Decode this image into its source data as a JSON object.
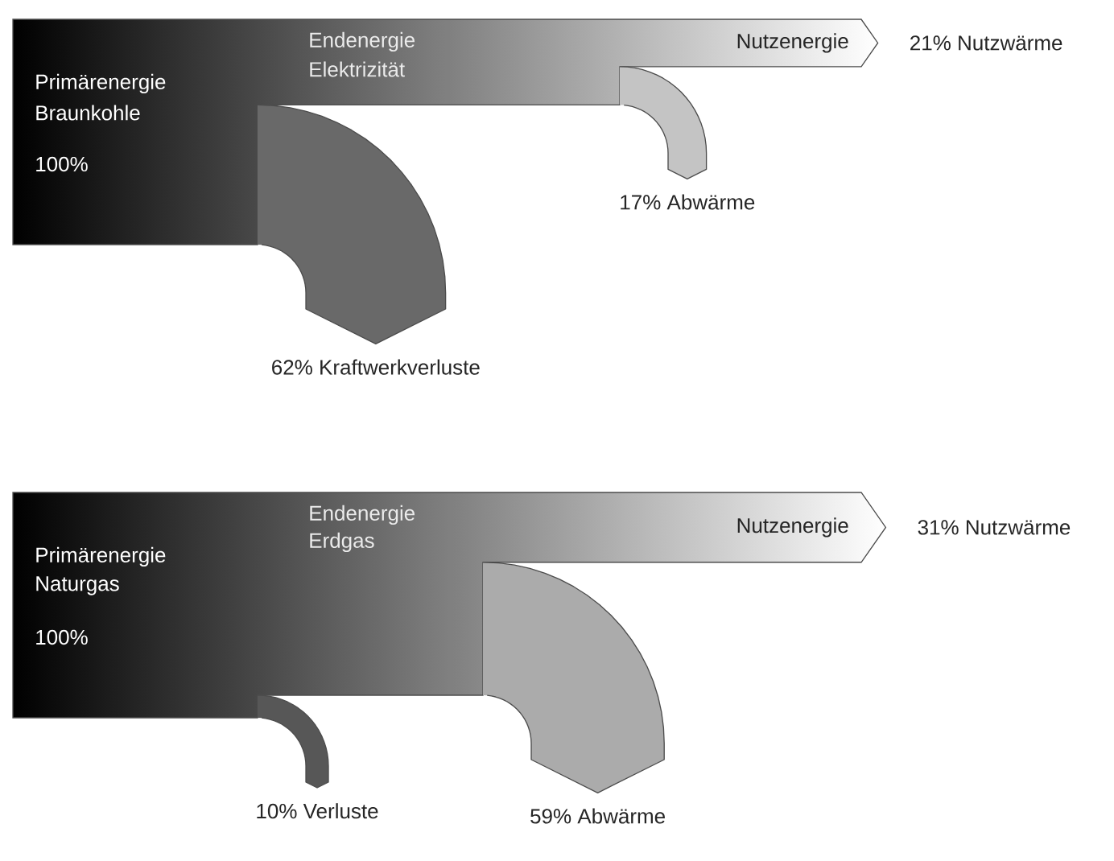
{
  "chart_data": [
    {
      "type": "other",
      "categories": [
        "Kraftwerkverluste",
        "Abwärme",
        "Nutzwärme"
      ],
      "values": [
        62,
        17,
        21
      ],
      "value_labels": [
        "62%",
        "17%",
        "21%"
      ],
      "annotations": [
        "Primärenergie",
        "Braunkohle",
        "100%",
        "Endenergie",
        "Elektrizität",
        "Nutzenergie"
      ]
    },
    {
      "type": "other",
      "categories": [
        "Verluste",
        "Abwärme",
        "Nutzwärme"
      ],
      "values": [
        10,
        59,
        31
      ],
      "value_labels": [
        "10%",
        "59%",
        "31%"
      ],
      "annotations": [
        "Primärenergie",
        "Naturgas",
        "100%",
        "Endenergie",
        "Erdgas",
        "Nutzenergie"
      ]
    }
  ]
}
